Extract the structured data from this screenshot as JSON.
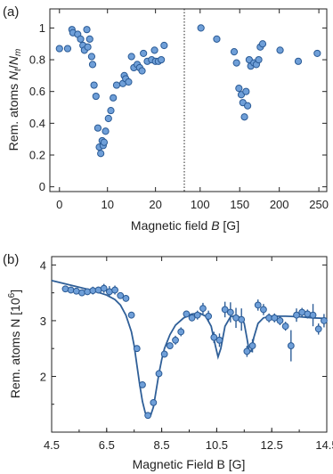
{
  "chart_data": [
    {
      "panel_label": "(a)",
      "type": "scatter",
      "ylabel": "Rem. atoms N_t/N_m",
      "ylabel_prefix": "Rem. atoms ",
      "ylabel_n1": "N",
      "ylabel_sub1": "t",
      "ylabel_slash": "/",
      "ylabel_n2": "N",
      "ylabel_sub2": "m",
      "xlabel": "Magnetic field B [G]",
      "xlabel_prefix": "Magnetic field ",
      "xlabel_var": "B",
      "xlabel_suffix": " [G]",
      "ylim": [
        -0.03,
        1.12
      ],
      "yticks": [
        "0",
        "0.2",
        "0.4",
        "0.6",
        "0.8",
        "1"
      ],
      "ytick_values": [
        0,
        0.2,
        0.4,
        0.6,
        0.8,
        1.0
      ],
      "broken_x_axis": true,
      "segments": [
        {
          "xlim": [
            -2,
            26
          ],
          "xticks": [
            "0",
            "10",
            "20"
          ],
          "xtick_values": [
            0,
            10,
            20
          ],
          "points": [
            {
              "x": 0,
              "y": 0.87
            },
            {
              "x": 1.7,
              "y": 0.87
            },
            {
              "x": 2.6,
              "y": 0.99
            },
            {
              "x": 2.8,
              "y": 0.97
            },
            {
              "x": 3.8,
              "y": 0.96
            },
            {
              "x": 4.4,
              "y": 0.93
            },
            {
              "x": 4.9,
              "y": 0.89
            },
            {
              "x": 5.2,
              "y": 0.86
            },
            {
              "x": 5.7,
              "y": 0.99
            },
            {
              "x": 5.9,
              "y": 0.88
            },
            {
              "x": 6.3,
              "y": 0.93
            },
            {
              "x": 6.7,
              "y": 0.82
            },
            {
              "x": 6.9,
              "y": 0.77
            },
            {
              "x": 7.2,
              "y": 0.64
            },
            {
              "x": 7.6,
              "y": 0.57
            },
            {
              "x": 8.0,
              "y": 0.37
            },
            {
              "x": 8.3,
              "y": 0.25
            },
            {
              "x": 8.6,
              "y": 0.21
            },
            {
              "x": 8.9,
              "y": 0.29
            },
            {
              "x": 9.1,
              "y": 0.26
            },
            {
              "x": 9.3,
              "y": 0.28
            },
            {
              "x": 9.6,
              "y": 0.35
            },
            {
              "x": 10.2,
              "y": 0.43
            },
            {
              "x": 10.7,
              "y": 0.48
            },
            {
              "x": 11.2,
              "y": 0.56
            },
            {
              "x": 11.9,
              "y": 0.64
            },
            {
              "x": 13.2,
              "y": 0.65
            },
            {
              "x": 13.5,
              "y": 0.7
            },
            {
              "x": 13.8,
              "y": 0.68
            },
            {
              "x": 14.4,
              "y": 0.66
            },
            {
              "x": 15.0,
              "y": 0.82
            },
            {
              "x": 15.5,
              "y": 0.75
            },
            {
              "x": 16.2,
              "y": 0.77
            },
            {
              "x": 16.7,
              "y": 0.75
            },
            {
              "x": 17.2,
              "y": 0.73
            },
            {
              "x": 17.5,
              "y": 0.84
            },
            {
              "x": 18.3,
              "y": 0.79
            },
            {
              "x": 19.2,
              "y": 0.8
            },
            {
              "x": 19.8,
              "y": 0.86
            },
            {
              "x": 20.0,
              "y": 0.79
            },
            {
              "x": 20.6,
              "y": 0.79
            },
            {
              "x": 21.2,
              "y": 0.8
            },
            {
              "x": 21.8,
              "y": 0.89
            }
          ]
        },
        {
          "xlim": [
            80,
            260
          ],
          "xticks": [
            "100",
            "150",
            "200",
            "250"
          ],
          "xtick_values": [
            100,
            150,
            200,
            250
          ],
          "points": [
            {
              "x": 101,
              "y": 1.0
            },
            {
              "x": 121,
              "y": 0.93
            },
            {
              "x": 143,
              "y": 0.85
            },
            {
              "x": 146,
              "y": 0.78
            },
            {
              "x": 149,
              "y": 0.62
            },
            {
              "x": 152,
              "y": 0.58
            },
            {
              "x": 154,
              "y": 0.53
            },
            {
              "x": 156,
              "y": 0.44
            },
            {
              "x": 158,
              "y": 0.6
            },
            {
              "x": 160,
              "y": 0.51
            },
            {
              "x": 162,
              "y": 0.8
            },
            {
              "x": 164,
              "y": 0.76
            },
            {
              "x": 168,
              "y": 0.78
            },
            {
              "x": 171,
              "y": 0.77
            },
            {
              "x": 174,
              "y": 0.8
            },
            {
              "x": 176,
              "y": 0.88
            },
            {
              "x": 179,
              "y": 0.9
            },
            {
              "x": 201,
              "y": 0.86
            },
            {
              "x": 224,
              "y": 0.79
            },
            {
              "x": 248,
              "y": 0.84
            }
          ]
        }
      ]
    },
    {
      "panel_label": "(b)",
      "type": "scatter",
      "ylabel": "Rem. atoms N [10^6]",
      "ylabel_prefix": "Rem. atoms N [10",
      "ylabel_sup": "6",
      "ylabel_suffix": "]",
      "xlabel": "Magnetic Field B [G]",
      "xlim": [
        4.5,
        14.5
      ],
      "ylim": [
        1.0,
        4.15
      ],
      "xticks": [
        "4.5",
        "6.5",
        "8.5",
        "10.5",
        "12.5",
        "14.5"
      ],
      "xtick_values": [
        4.5,
        6.5,
        8.5,
        10.5,
        12.5,
        14.5
      ],
      "yticks": [
        "2",
        "3",
        "4"
      ],
      "ytick_values": [
        2,
        3,
        4
      ],
      "points": [
        {
          "x": 5.0,
          "y": 3.57,
          "err": 0.06
        },
        {
          "x": 5.2,
          "y": 3.55,
          "err": 0.06
        },
        {
          "x": 5.4,
          "y": 3.53,
          "err": 0.06
        },
        {
          "x": 5.6,
          "y": 3.5,
          "err": 0.06
        },
        {
          "x": 5.8,
          "y": 3.52,
          "err": 0.06
        },
        {
          "x": 6.0,
          "y": 3.54,
          "err": 0.07
        },
        {
          "x": 6.2,
          "y": 3.55,
          "err": 0.06
        },
        {
          "x": 6.4,
          "y": 3.58,
          "err": 0.08
        },
        {
          "x": 6.6,
          "y": 3.52,
          "err": 0.1
        },
        {
          "x": 6.8,
          "y": 3.55,
          "err": 0.08
        },
        {
          "x": 7.0,
          "y": 3.45,
          "err": 0.06
        },
        {
          "x": 7.2,
          "y": 3.4,
          "err": 0.06
        },
        {
          "x": 7.4,
          "y": 3.1,
          "err": 0.06
        },
        {
          "x": 7.6,
          "y": 2.5,
          "err": 0.06
        },
        {
          "x": 7.8,
          "y": 1.85,
          "err": 0.06
        },
        {
          "x": 8.0,
          "y": 1.3,
          "err": 0.06
        },
        {
          "x": 8.2,
          "y": 1.53,
          "err": 0.06
        },
        {
          "x": 8.4,
          "y": 2.05,
          "err": 0.06
        },
        {
          "x": 8.6,
          "y": 2.4,
          "err": 0.06
        },
        {
          "x": 8.8,
          "y": 2.55,
          "err": 0.06
        },
        {
          "x": 9.0,
          "y": 2.65,
          "err": 0.08
        },
        {
          "x": 9.2,
          "y": 2.8,
          "err": 0.08
        },
        {
          "x": 9.4,
          "y": 3.12,
          "err": 0.06
        },
        {
          "x": 9.6,
          "y": 3.05,
          "err": 0.06
        },
        {
          "x": 9.8,
          "y": 3.1,
          "err": 0.08
        },
        {
          "x": 10.0,
          "y": 3.22,
          "err": 0.1
        },
        {
          "x": 10.2,
          "y": 3.08,
          "err": 0.1
        },
        {
          "x": 10.4,
          "y": 2.7,
          "err": 0.1
        },
        {
          "x": 10.6,
          "y": 2.65,
          "err": 0.12
        },
        {
          "x": 10.8,
          "y": 3.2,
          "err": 0.14
        },
        {
          "x": 11.0,
          "y": 3.15,
          "err": 0.18
        },
        {
          "x": 11.2,
          "y": 3.05,
          "err": 0.18
        },
        {
          "x": 11.4,
          "y": 3.02,
          "err": 0.2
        },
        {
          "x": 11.6,
          "y": 2.45,
          "err": 0.1
        },
        {
          "x": 11.8,
          "y": 2.55,
          "err": 0.12
        },
        {
          "x": 12.0,
          "y": 3.28,
          "err": 0.1
        },
        {
          "x": 12.2,
          "y": 3.2,
          "err": 0.1
        },
        {
          "x": 12.4,
          "y": 3.05,
          "err": 0.08
        },
        {
          "x": 12.6,
          "y": 3.05,
          "err": 0.08
        },
        {
          "x": 12.8,
          "y": 3.0,
          "err": 0.08
        },
        {
          "x": 13.0,
          "y": 2.9,
          "err": 0.08
        },
        {
          "x": 13.2,
          "y": 2.55,
          "err": 0.28
        },
        {
          "x": 13.4,
          "y": 3.1,
          "err": 0.12
        },
        {
          "x": 13.6,
          "y": 3.15,
          "err": 0.08
        },
        {
          "x": 13.8,
          "y": 3.12,
          "err": 0.08
        },
        {
          "x": 14.0,
          "y": 3.1,
          "err": 0.2
        },
        {
          "x": 14.2,
          "y": 2.85,
          "err": 0.1
        },
        {
          "x": 14.4,
          "y": 3.0,
          "err": 0.12
        }
      ],
      "fit_curve": {
        "x": [
          4.5,
          5.0,
          5.5,
          6.0,
          6.5,
          6.8,
          7.0,
          7.2,
          7.4,
          7.5,
          7.6,
          7.7,
          7.8,
          7.9,
          8.0,
          8.05,
          8.1,
          8.2,
          8.3,
          8.4,
          8.5,
          8.6,
          8.8,
          9.0,
          9.3,
          9.6,
          9.9,
          10.1,
          10.3,
          10.45,
          10.55,
          10.65,
          10.8,
          11.0,
          11.2,
          11.4,
          11.5,
          11.6,
          11.68,
          11.75,
          11.85,
          12.0,
          12.2,
          12.5,
          13.0,
          13.5,
          14.0,
          14.5
        ],
        "y": [
          3.72,
          3.66,
          3.6,
          3.54,
          3.46,
          3.38,
          3.28,
          3.1,
          2.8,
          2.55,
          2.2,
          1.85,
          1.55,
          1.35,
          1.28,
          1.27,
          1.3,
          1.45,
          1.75,
          2.05,
          2.3,
          2.5,
          2.75,
          2.92,
          3.05,
          3.12,
          3.13,
          3.08,
          2.9,
          2.55,
          2.35,
          2.5,
          2.9,
          3.07,
          3.09,
          3.05,
          2.95,
          2.68,
          2.45,
          2.45,
          2.7,
          2.95,
          3.05,
          3.08,
          3.08,
          3.07,
          3.05,
          3.04
        ]
      }
    }
  ]
}
